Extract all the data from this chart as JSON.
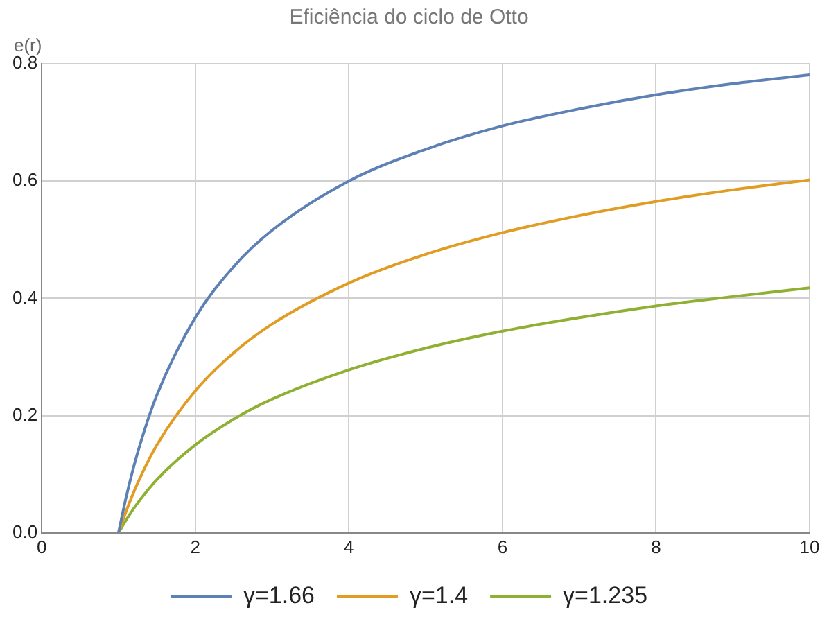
{
  "chart_data": {
    "type": "line",
    "title": "Eficiência do ciclo de Otto",
    "ylabel": "e(r)",
    "x": [
      1,
      1.1,
      1.25,
      1.5,
      2,
      2.5,
      3,
      4,
      5,
      6,
      7,
      8,
      9,
      10
    ],
    "series": [
      {
        "name": "γ=1.66",
        "color": "#5e81b5",
        "values": [
          0,
          0.061,
          0.137,
          0.235,
          0.367,
          0.454,
          0.516,
          0.6,
          0.654,
          0.694,
          0.723,
          0.747,
          0.766,
          0.781
        ]
      },
      {
        "name": "γ=1.4",
        "color": "#e19c24",
        "values": [
          0,
          0.037,
          0.085,
          0.15,
          0.242,
          0.307,
          0.356,
          0.426,
          0.475,
          0.512,
          0.541,
          0.565,
          0.585,
          0.602
        ]
      },
      {
        "name": "γ=1.235",
        "color": "#8fb032",
        "values": [
          0,
          0.022,
          0.051,
          0.091,
          0.15,
          0.194,
          0.228,
          0.278,
          0.315,
          0.344,
          0.367,
          0.387,
          0.403,
          0.418
        ]
      }
    ],
    "xlim": [
      0,
      10
    ],
    "xticks": [
      0,
      2,
      4,
      6,
      8,
      10
    ],
    "ylim": [
      0,
      0.8
    ],
    "yticks": [
      {
        "value": 0,
        "label": "0.0"
      },
      {
        "value": 0.2,
        "label": "0.2"
      },
      {
        "value": 0.4,
        "label": "0.4"
      },
      {
        "value": 0.6,
        "label": "0.6"
      },
      {
        "value": 0.8,
        "label": "0.8"
      }
    ],
    "grid": true,
    "legend": "bottom",
    "marker": "none",
    "line_style": "solid"
  }
}
